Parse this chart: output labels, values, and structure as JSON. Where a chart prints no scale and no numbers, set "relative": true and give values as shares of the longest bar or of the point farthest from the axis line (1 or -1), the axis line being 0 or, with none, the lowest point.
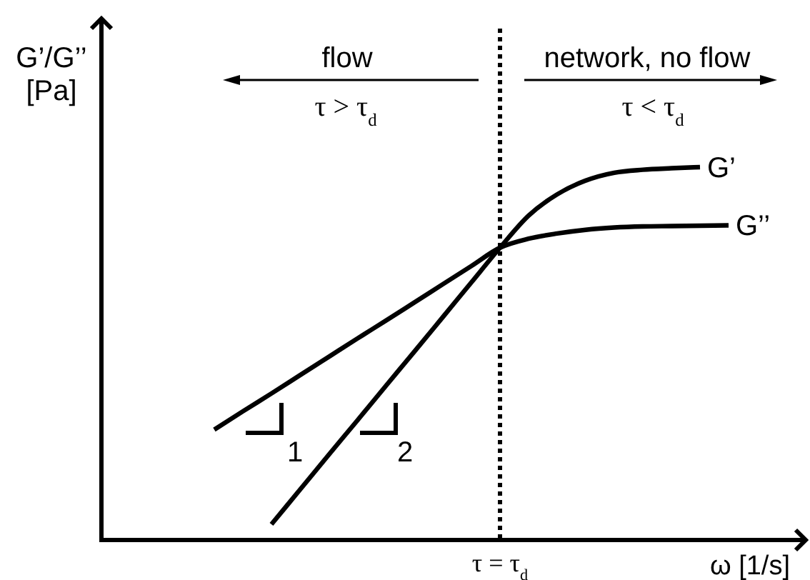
{
  "chart_data": {
    "type": "line",
    "relative": true,
    "xlabel": "ω [1/s]",
    "ylabel": "G’/G’’ [Pa]",
    "categories": [
      null,
      null,
      null,
      null,
      null,
      null,
      null,
      null,
      null,
      null,
      null,
      null,
      null,
      null,
      null,
      null,
      null,
      null,
      null
    ],
    "series": [
      {
        "name": "G’",
        "color": "#000000",
        "values": [
          null,
          null,
          0.042,
          0.135,
          0.228,
          0.32,
          0.413,
          0.505,
          0.598,
          0.691,
          0.784,
          0.87,
          0.927,
          0.964,
          0.985,
          0.993,
          0.997,
          1.0,
          null
        ]
      },
      {
        "name": "G’’",
        "color": "#000000",
        "values": [
          0.296,
          0.345,
          0.393,
          0.442,
          0.491,
          0.54,
          0.588,
          0.637,
          0.686,
          0.735,
          0.784,
          0.808,
          0.822,
          0.832,
          0.838,
          0.841,
          0.842,
          0.843,
          0.844
        ]
      }
    ],
    "annotations": [
      "flow",
      "τ > τ$_{d}$",
      "network, no flow",
      "τ < τ$_{d}$",
      "1",
      "2",
      "τ = τ$_{d}$"
    ]
  }
}
